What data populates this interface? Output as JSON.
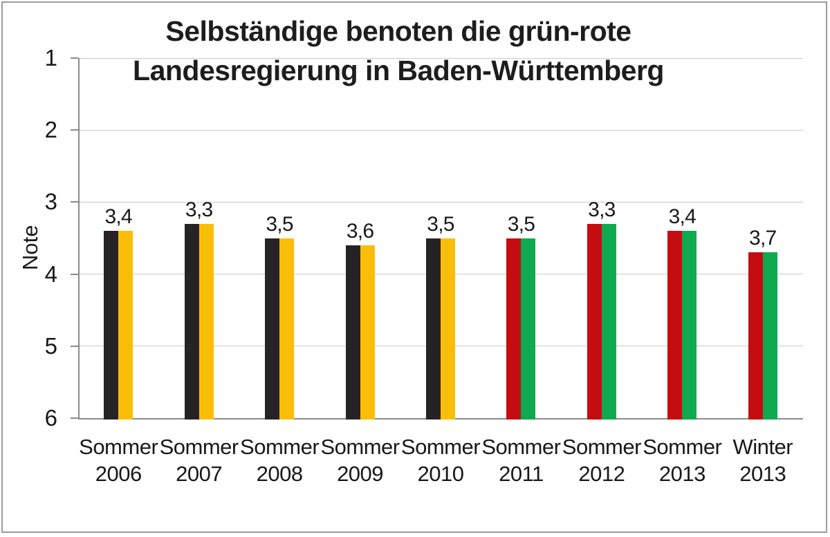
{
  "chart_data": {
    "type": "bar",
    "title_lines": [
      "Selbständige benoten die grün-rote",
      "Landesregierung in Baden-Württemberg"
    ],
    "ylabel": "Note",
    "y_ticks": [
      "1",
      "2",
      "3",
      "4",
      "5",
      "6"
    ],
    "ylim": [
      1,
      6
    ],
    "y_axis_inverted": true,
    "grid": true,
    "categories": [
      {
        "line1": "Sommer",
        "line2": "2006"
      },
      {
        "line1": "Sommer",
        "line2": "2007"
      },
      {
        "line1": "Sommer",
        "line2": "2008"
      },
      {
        "line1": "Sommer",
        "line2": "2009"
      },
      {
        "line1": "Sommer",
        "line2": "2010"
      },
      {
        "line1": "Sommer",
        "line2": "2011"
      },
      {
        "line1": "Sommer",
        "line2": "2012"
      },
      {
        "line1": "Sommer",
        "line2": "2013"
      },
      {
        "line1": "Winter",
        "line2": "2013"
      }
    ],
    "series": [
      {
        "name": "left-bar",
        "values": [
          3.4,
          3.3,
          3.5,
          3.6,
          3.5,
          3.5,
          3.3,
          3.4,
          3.7
        ],
        "colors": [
          "#262226",
          "#262226",
          "#262226",
          "#262226",
          "#262226",
          "#c50d11",
          "#c50d11",
          "#c50d11",
          "#c50d11"
        ]
      },
      {
        "name": "right-bar",
        "values": [
          3.4,
          3.3,
          3.5,
          3.6,
          3.5,
          3.5,
          3.3,
          3.4,
          3.7
        ],
        "colors": [
          "#fbbe08",
          "#fbbe08",
          "#fbbe08",
          "#fbbe08",
          "#fbbe08",
          "#0fa94f",
          "#0fa94f",
          "#0fa94f",
          "#0fa94f"
        ]
      }
    ],
    "data_labels": [
      "3,4",
      "3,3",
      "3,5",
      "3,6",
      "3,5",
      "3,5",
      "3,3",
      "3,4",
      "3,7"
    ],
    "colors": {
      "black_bar": "#262226",
      "gold_bar": "#fbbe08",
      "red_bar": "#c50d11",
      "green_bar": "#0fa94f",
      "gridline": "#c9c9c9",
      "axis": "#8a8a8a",
      "text": "#181818",
      "frame_border": "#9a9a9a"
    },
    "legend": "none"
  }
}
